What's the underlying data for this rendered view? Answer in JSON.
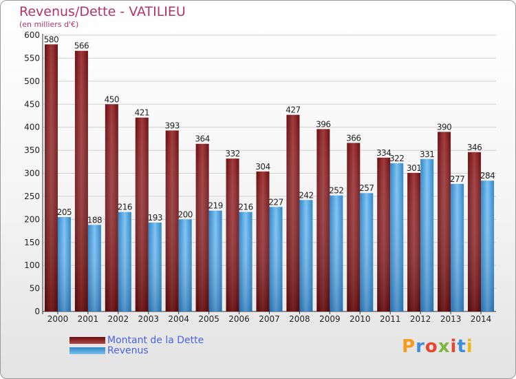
{
  "chart_data": {
    "type": "bar",
    "title": "Revenus/Dette - VATILIEU",
    "subtitle": "(en milliers d'€)",
    "categories": [
      "2000",
      "2001",
      "2002",
      "2003",
      "2004",
      "2005",
      "2006",
      "2007",
      "2008",
      "2009",
      "2010",
      "2011",
      "2012",
      "2013",
      "2014"
    ],
    "series": [
      {
        "name": "Montant de la Dette",
        "color": "#8b1f22",
        "values": [
          580,
          566,
          450,
          421,
          393,
          364,
          332,
          304,
          427,
          396,
          366,
          334,
          301,
          390,
          346
        ]
      },
      {
        "name": "Revenus",
        "color": "#4aa3e6",
        "values": [
          205,
          188,
          216,
          193,
          200,
          219,
          216,
          227,
          242,
          252,
          257,
          322,
          331,
          277,
          284
        ]
      }
    ],
    "yticks": [
      0,
      50,
      100,
      150,
      200,
      250,
      300,
      350,
      400,
      450,
      500,
      550,
      600
    ],
    "ylim": [
      0,
      600
    ],
    "grid": true,
    "legend_position": "bottom-left"
  },
  "logo": {
    "text": "Proxiti"
  }
}
